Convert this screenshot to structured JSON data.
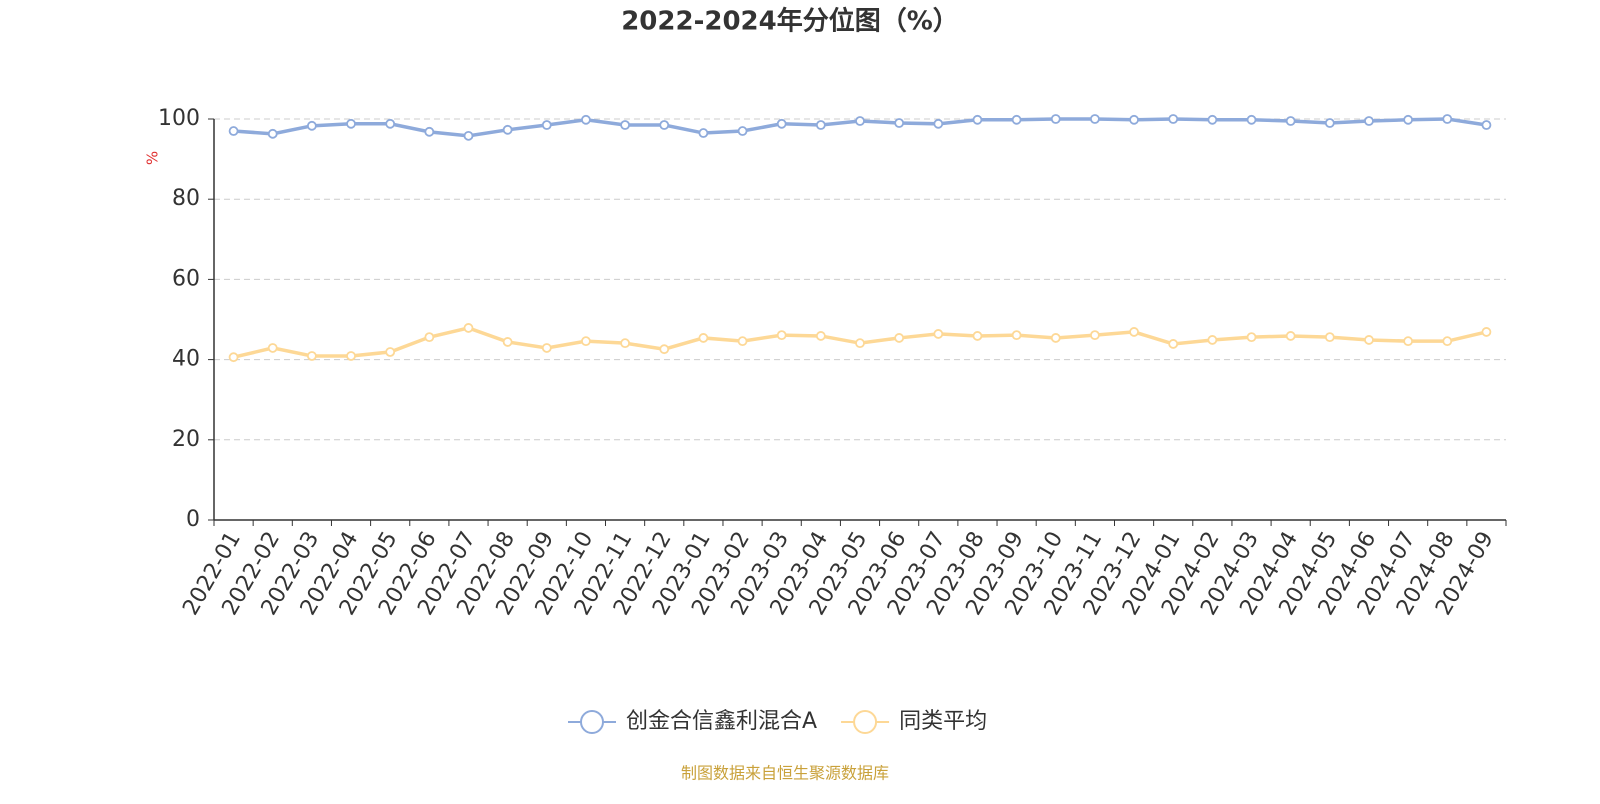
{
  "chart_data": {
    "type": "line",
    "title": "2022-2024年分位图（%）",
    "y_label": "%",
    "source": "制图数据来自恒生聚源数据库",
    "categories": [
      "2022-01",
      "2022-02",
      "2022-03",
      "2022-04",
      "2022-05",
      "2022-06",
      "2022-07",
      "2022-08",
      "2022-09",
      "2022-10",
      "2022-11",
      "2022-12",
      "2023-01",
      "2023-02",
      "2023-03",
      "2023-04",
      "2023-05",
      "2023-06",
      "2023-07",
      "2023-08",
      "2023-09",
      "2023-10",
      "2023-11",
      "2023-12",
      "2024-01",
      "2024-02",
      "2024-03",
      "2024-04",
      "2024-05",
      "2024-06",
      "2024-07",
      "2024-08",
      "2024-09"
    ],
    "series": [
      {
        "name": "创金合信鑫利混合A",
        "color": "#8eaadb",
        "values": [
          97.0,
          96.3,
          98.3,
          98.8,
          98.8,
          96.8,
          95.8,
          97.3,
          98.5,
          99.8,
          98.5,
          98.5,
          96.5,
          97.0,
          98.8,
          98.5,
          99.5,
          99.0,
          98.8,
          99.8,
          99.8,
          100,
          100,
          99.8,
          100,
          99.8,
          99.8,
          99.5,
          99.0,
          99.5,
          99.8,
          100,
          98.5
        ]
      },
      {
        "name": "同类平均",
        "color": "#fdd896",
        "values": [
          40.6,
          42.9,
          40.9,
          40.9,
          41.9,
          45.6,
          47.9,
          44.4,
          42.9,
          44.6,
          44.1,
          42.6,
          45.4,
          44.6,
          46.1,
          45.9,
          44.1,
          45.4,
          46.4,
          45.9,
          46.1,
          45.4,
          46.1,
          46.9,
          43.9,
          44.9,
          45.6,
          45.9,
          45.6,
          44.9,
          44.6,
          44.6,
          46.9
        ]
      }
    ],
    "ylim": [
      0,
      100
    ],
    "yticks": [
      0,
      20,
      40,
      60,
      80,
      100
    ],
    "grid": true,
    "legend": "bottom"
  }
}
